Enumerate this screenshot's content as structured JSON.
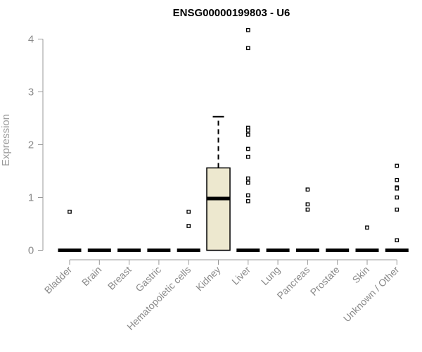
{
  "chart_data": {
    "type": "box",
    "title": "ENSG00000199803 - U6",
    "xlabel": "",
    "ylabel": "Expression",
    "ylim": [
      0,
      4.2
    ],
    "yticks": [
      0,
      1,
      2,
      3,
      4
    ],
    "grid": false,
    "categories": [
      "Bladder",
      "Brain",
      "Breast",
      "Gastric",
      "Hematopoietic cells",
      "Kidney",
      "Liver",
      "Lung",
      "Pancreas",
      "Prostate",
      "Skin",
      "Unknown / Other"
    ],
    "box_fill": "#ede8cf",
    "boxes": [
      {
        "category": "Bladder",
        "min": 0,
        "q1": 0,
        "median": 0,
        "q3": 0,
        "max": 0,
        "outliers": [
          0.73
        ]
      },
      {
        "category": "Brain",
        "min": 0,
        "q1": 0,
        "median": 0,
        "q3": 0,
        "max": 0,
        "outliers": []
      },
      {
        "category": "Breast",
        "min": 0,
        "q1": 0,
        "median": 0,
        "q3": 0,
        "max": 0,
        "outliers": []
      },
      {
        "category": "Gastric",
        "min": 0,
        "q1": 0,
        "median": 0,
        "q3": 0,
        "max": 0,
        "outliers": []
      },
      {
        "category": "Hematopoietic cells",
        "min": 0,
        "q1": 0,
        "median": 0,
        "q3": 0,
        "max": 0,
        "outliers": [
          0.73,
          0.46
        ]
      },
      {
        "category": "Kidney",
        "min": 0,
        "q1": 0,
        "median": 0.98,
        "q3": 1.56,
        "max": 2.53,
        "outliers": []
      },
      {
        "category": "Liver",
        "min": 0,
        "q1": 0,
        "median": 0,
        "q3": 0,
        "max": 0,
        "outliers": [
          4.17,
          3.83,
          2.32,
          2.27,
          2.19,
          1.92,
          1.77,
          1.36,
          1.28,
          1.04,
          0.93
        ]
      },
      {
        "category": "Lung",
        "min": 0,
        "q1": 0,
        "median": 0,
        "q3": 0,
        "max": 0,
        "outliers": []
      },
      {
        "category": "Pancreas",
        "min": 0,
        "q1": 0,
        "median": 0,
        "q3": 0,
        "max": 0,
        "outliers": [
          1.15,
          0.87,
          0.77
        ]
      },
      {
        "category": "Prostate",
        "min": 0,
        "q1": 0,
        "median": 0,
        "q3": 0,
        "max": 0,
        "outliers": []
      },
      {
        "category": "Skin",
        "min": 0,
        "q1": 0,
        "median": 0,
        "q3": 0,
        "max": 0,
        "outliers": [
          0.43
        ]
      },
      {
        "category": "Unknown / Other",
        "min": 0,
        "q1": 0,
        "median": 0,
        "q3": 0,
        "max": 0,
        "outliers": [
          1.6,
          1.33,
          1.19,
          1.17,
          1.0,
          0.77,
          0.19
        ]
      }
    ]
  }
}
